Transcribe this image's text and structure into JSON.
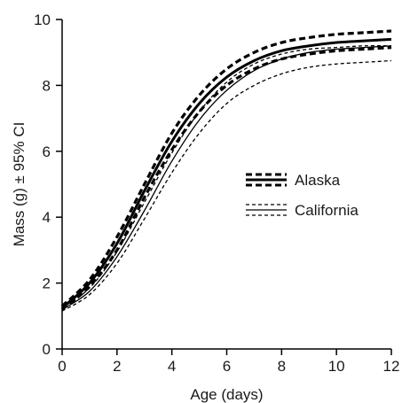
{
  "chart_data": {
    "type": "line",
    "title": "",
    "xlabel": "Age (days)",
    "ylabel": "Mass (g) ± 95% CI",
    "xlim": [
      0,
      12
    ],
    "ylim": [
      0,
      10
    ],
    "x_ticks": [
      0,
      2,
      4,
      6,
      8,
      10,
      12
    ],
    "y_ticks": [
      0,
      2,
      4,
      6,
      8,
      10
    ],
    "x_tick_labels": [
      "0",
      "2",
      "4",
      "6",
      "8",
      "10",
      "12"
    ],
    "y_tick_labels": [
      "0",
      "2",
      "4",
      "6",
      "8",
      "10"
    ],
    "grid": false,
    "legend_position": "center-right",
    "x": [
      0,
      1,
      2,
      3,
      4,
      5,
      6,
      7,
      8,
      9,
      10,
      11,
      12
    ],
    "series": [
      {
        "name": "Alaska",
        "color": "#000000",
        "style": "thick",
        "values": [
          1.25,
          2.0,
          3.2,
          4.8,
          6.3,
          7.45,
          8.25,
          8.75,
          9.05,
          9.2,
          9.3,
          9.35,
          9.4
        ],
        "ci_upper": [
          1.3,
          2.1,
          3.4,
          5.0,
          6.55,
          7.7,
          8.5,
          9.0,
          9.3,
          9.45,
          9.55,
          9.6,
          9.65
        ],
        "ci_lower": [
          1.2,
          1.9,
          3.0,
          4.6,
          6.05,
          7.2,
          8.0,
          8.5,
          8.8,
          8.95,
          9.05,
          9.1,
          9.15
        ]
      },
      {
        "name": "California",
        "color": "#000000",
        "style": "thin",
        "values": [
          1.2,
          1.75,
          2.8,
          4.2,
          5.7,
          6.95,
          7.85,
          8.45,
          8.8,
          9.0,
          9.1,
          9.15,
          9.2
        ],
        "ci_upper": [
          1.25,
          1.85,
          2.95,
          4.45,
          5.95,
          7.2,
          8.1,
          8.65,
          8.95,
          9.1,
          9.15,
          9.2,
          9.2
        ],
        "ci_lower": [
          1.15,
          1.65,
          2.6,
          3.95,
          5.35,
          6.55,
          7.45,
          8.0,
          8.35,
          8.55,
          8.65,
          8.7,
          8.75
        ]
      }
    ]
  }
}
